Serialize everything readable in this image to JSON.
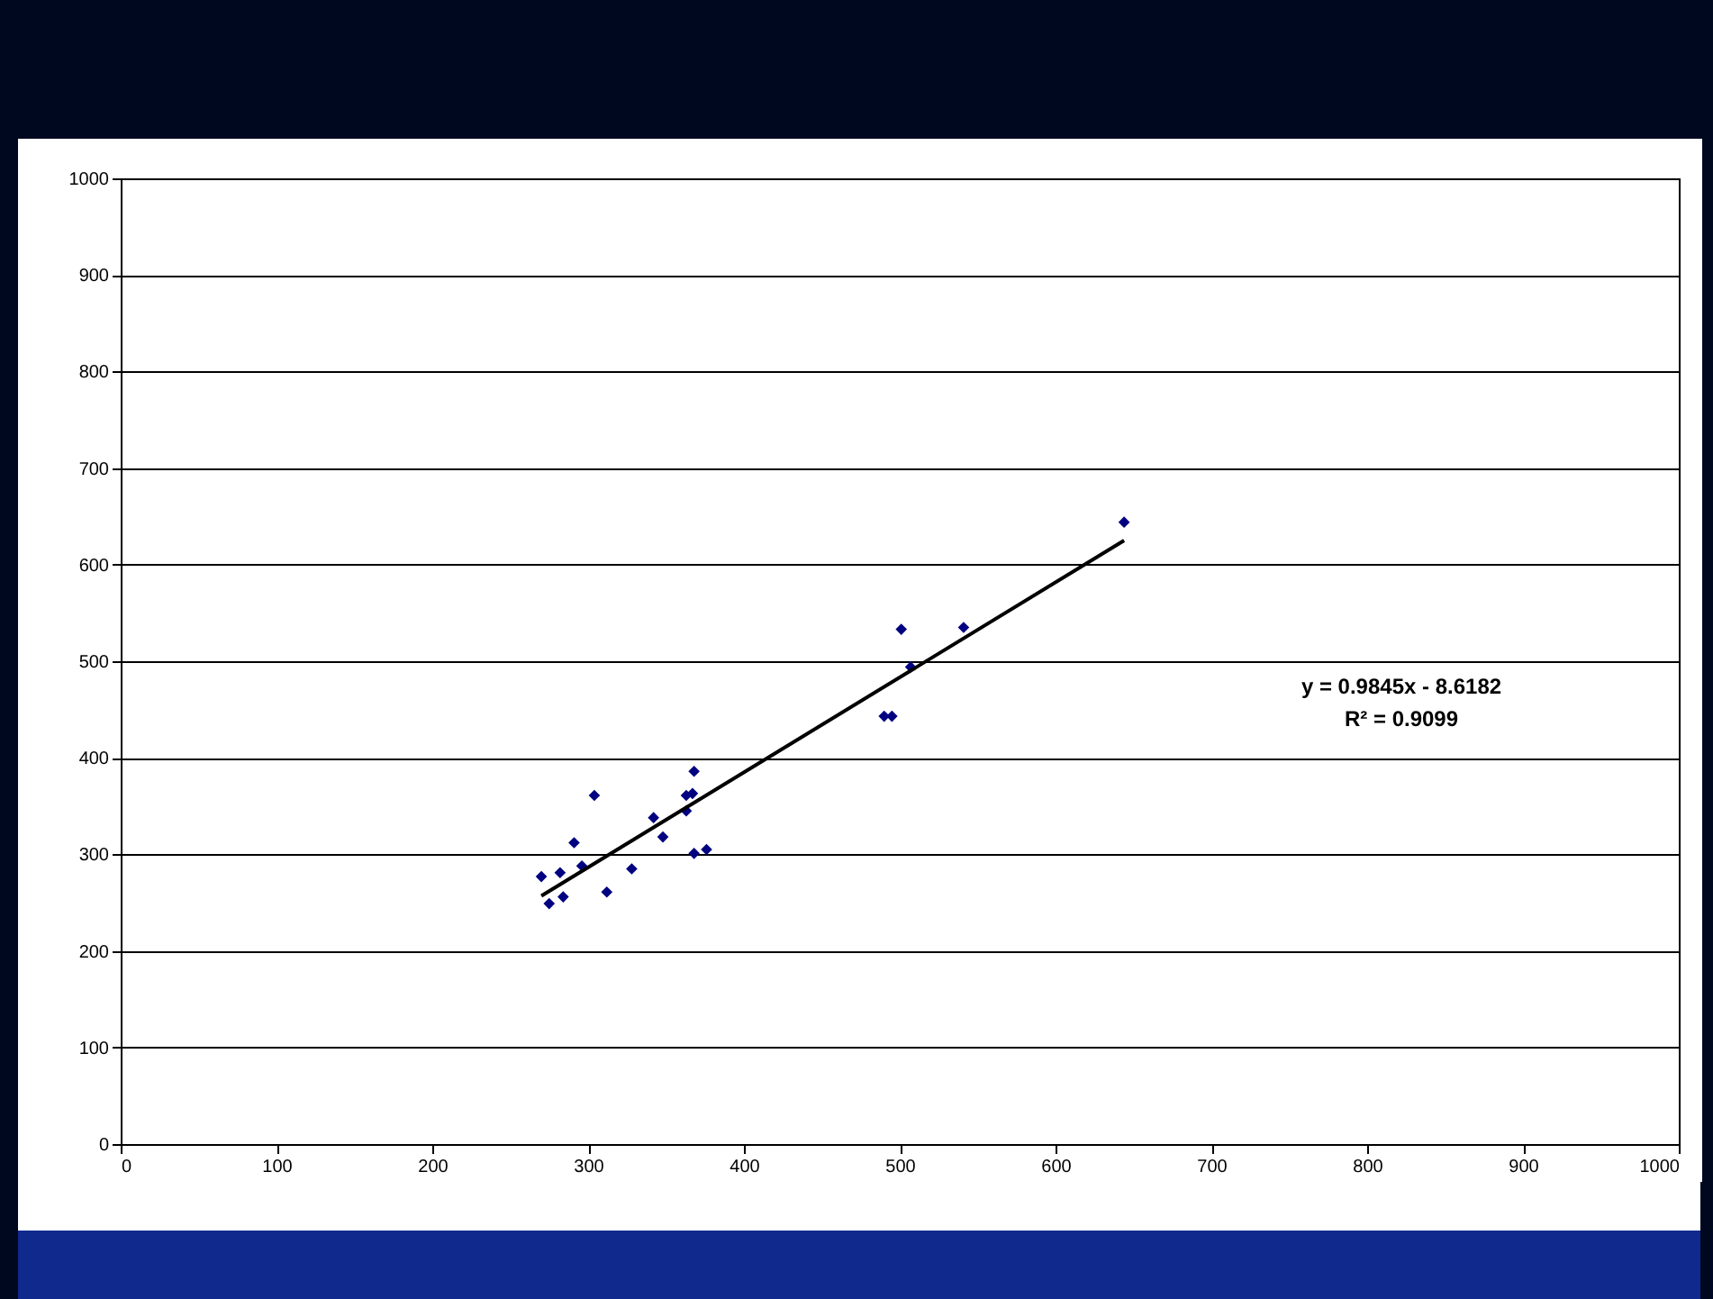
{
  "chart_data": {
    "type": "scatter",
    "marker": "diamond",
    "grid": "y",
    "xlim": [
      0,
      1000
    ],
    "xticks": [
      0,
      100,
      200,
      300,
      400,
      500,
      600,
      700,
      800,
      900,
      1000
    ],
    "ylim": [
      0,
      1000
    ],
    "yticks": [
      0,
      100,
      200,
      300,
      400,
      500,
      600,
      700,
      800,
      900,
      1000
    ],
    "annotations": [
      "y = 0.9845x - 8.6182",
      "R² = 0.9099"
    ],
    "series": [
      {
        "color": "#000080",
        "x": [
          270,
          275,
          284,
          282,
          291,
          296,
          304,
          312,
          328,
          342,
          348,
          363,
          367,
          363,
          368,
          368,
          376,
          644,
          501,
          541,
          507,
          490,
          495
        ],
        "values": [
          277,
          249,
          256,
          281,
          312,
          288,
          361,
          261,
          285,
          338,
          318,
          361,
          363,
          345,
          386,
          301,
          305,
          644,
          533,
          535,
          494,
          443,
          443
        ]
      },
      {
        "type": "line",
        "color": "#000000",
        "line_style": "solid",
        "marker": "none",
        "x": [
          270,
          644
        ],
        "values": [
          257,
          625
        ]
      }
    ]
  }
}
